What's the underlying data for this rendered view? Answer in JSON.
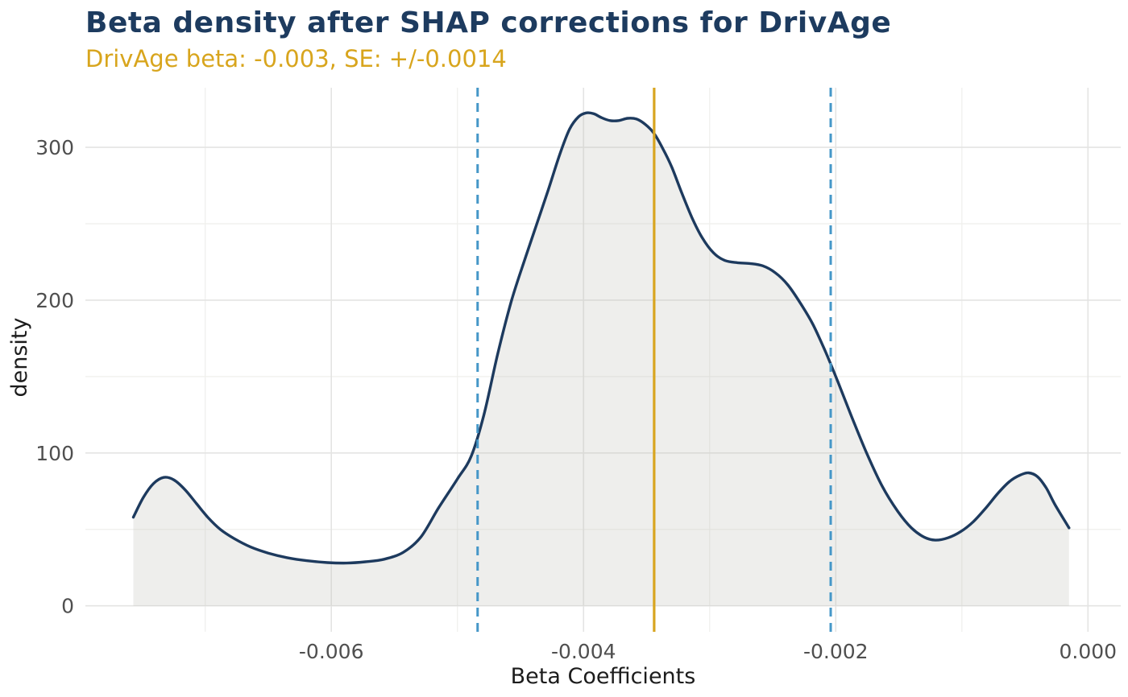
{
  "header": {
    "title": "Beta density after SHAP corrections for DrivAge",
    "subtitle": "DrivAge beta: -0.003, SE: +/-0.0014"
  },
  "axes": {
    "x_label": "Beta Coefficients",
    "y_label": "density",
    "x_tick_labels": [
      "-0.006",
      "-0.004",
      "-0.002",
      "0.000"
    ],
    "y_tick_labels": [
      "0",
      "100",
      "200",
      "300"
    ]
  },
  "colors": {
    "title": "#1d3b5f",
    "subtitle": "#d8a51d",
    "curve": "#1d3a5e",
    "area_fill": "rgba(193,193,186,0.27)",
    "mean_line": "#d8a520",
    "se_line": "#4597c8",
    "grid_major": "#e4e4e3",
    "grid_minor": "#efefec",
    "tick_text": "#4f4f4f",
    "axis_title_text": "#1c1c1c"
  },
  "chart_data": {
    "type": "area",
    "title": "Beta density after SHAP corrections for DrivAge",
    "subtitle": "DrivAge beta: -0.003, SE: +/-0.0014",
    "xlabel": "Beta Coefficients",
    "ylabel": "density",
    "xlim": [
      -0.00795,
      0.00026
    ],
    "ylim": [
      -17,
      339
    ],
    "x_ticks": [
      -0.006,
      -0.004,
      -0.002,
      0.0
    ],
    "x_minor_ticks": [
      -0.007,
      -0.005,
      -0.003,
      -0.001
    ],
    "y_ticks": [
      0,
      100,
      200,
      300
    ],
    "y_minor_ticks": [
      50,
      150,
      250
    ],
    "grid": "major+minor",
    "legend": "none",
    "beta_hat_displayed": -0.003,
    "se_displayed": 0.0014,
    "vlines": [
      {
        "name": "beta-mean",
        "x": -0.00344,
        "style": "solid",
        "color": "#d8a520",
        "width": 3.2
      },
      {
        "name": "se-lower",
        "x": -0.00484,
        "style": "dashed",
        "color": "#4597c8",
        "width": 3
      },
      {
        "name": "se-upper",
        "x": -0.00204,
        "style": "dashed",
        "color": "#4597c8",
        "width": 3
      }
    ],
    "series": [
      {
        "name": "beta-density",
        "points": [
          [
            -0.00757,
            58
          ],
          [
            -0.00749,
            71
          ],
          [
            -0.00741,
            80
          ],
          [
            -0.00733,
            84
          ],
          [
            -0.00725,
            82.5
          ],
          [
            -0.00716,
            76
          ],
          [
            -0.00707,
            67
          ],
          [
            -0.00698,
            58
          ],
          [
            -0.00688,
            50
          ],
          [
            -0.00677,
            44
          ],
          [
            -0.00664,
            38.5
          ],
          [
            -0.0065,
            34.5
          ],
          [
            -0.00635,
            31.5
          ],
          [
            -0.00619,
            29.5
          ],
          [
            -0.00603,
            28.3
          ],
          [
            -0.00588,
            28
          ],
          [
            -0.00573,
            28.8
          ],
          [
            -0.00558,
            30.5
          ],
          [
            -0.00543,
            35
          ],
          [
            -0.00529,
            45
          ],
          [
            -0.00515,
            64
          ],
          [
            -0.005,
            83
          ],
          [
            -0.00489,
            98
          ],
          [
            -0.00479,
            125
          ],
          [
            -0.00468,
            165
          ],
          [
            -0.00457,
            200
          ],
          [
            -0.00446,
            228
          ],
          [
            -0.00437,
            250
          ],
          [
            -0.00428,
            272
          ],
          [
            -0.00419,
            295
          ],
          [
            -0.00411,
            312
          ],
          [
            -0.00404,
            320
          ],
          [
            -0.00398,
            322.5
          ],
          [
            -0.00392,
            322
          ],
          [
            -0.00386,
            319.5
          ],
          [
            -0.00379,
            317.5
          ],
          [
            -0.00372,
            317.5
          ],
          [
            -0.00365,
            319
          ],
          [
            -0.00358,
            318.5
          ],
          [
            -0.00351,
            315
          ],
          [
            -0.00344,
            309
          ],
          [
            -0.00337,
            299
          ],
          [
            -0.0033,
            287
          ],
          [
            -0.00322,
            270
          ],
          [
            -0.00314,
            254
          ],
          [
            -0.00306,
            241
          ],
          [
            -0.00297,
            231
          ],
          [
            -0.00288,
            226
          ],
          [
            -0.00278,
            224.5
          ],
          [
            -0.00268,
            224
          ],
          [
            -0.00258,
            222.5
          ],
          [
            -0.00248,
            218
          ],
          [
            -0.00238,
            210
          ],
          [
            -0.00228,
            198
          ],
          [
            -0.00218,
            184
          ],
          [
            -0.00208,
            166
          ],
          [
            -0.00198,
            146
          ],
          [
            -0.00187,
            123
          ],
          [
            -0.00175,
            99
          ],
          [
            -0.00163,
            78
          ],
          [
            -0.00151,
            62
          ],
          [
            -0.0014,
            51
          ],
          [
            -0.0013,
            45
          ],
          [
            -0.00121,
            43
          ],
          [
            -0.00111,
            44.5
          ],
          [
            -0.00101,
            48.5
          ],
          [
            -0.00091,
            55
          ],
          [
            -0.00081,
            64
          ],
          [
            -0.00071,
            74
          ],
          [
            -0.00062,
            81.5
          ],
          [
            -0.00054,
            85.5
          ],
          [
            -0.00047,
            87
          ],
          [
            -0.0004,
            84.5
          ],
          [
            -0.00033,
            77
          ],
          [
            -0.00026,
            66
          ],
          [
            -0.00015,
            51
          ]
        ]
      }
    ]
  }
}
